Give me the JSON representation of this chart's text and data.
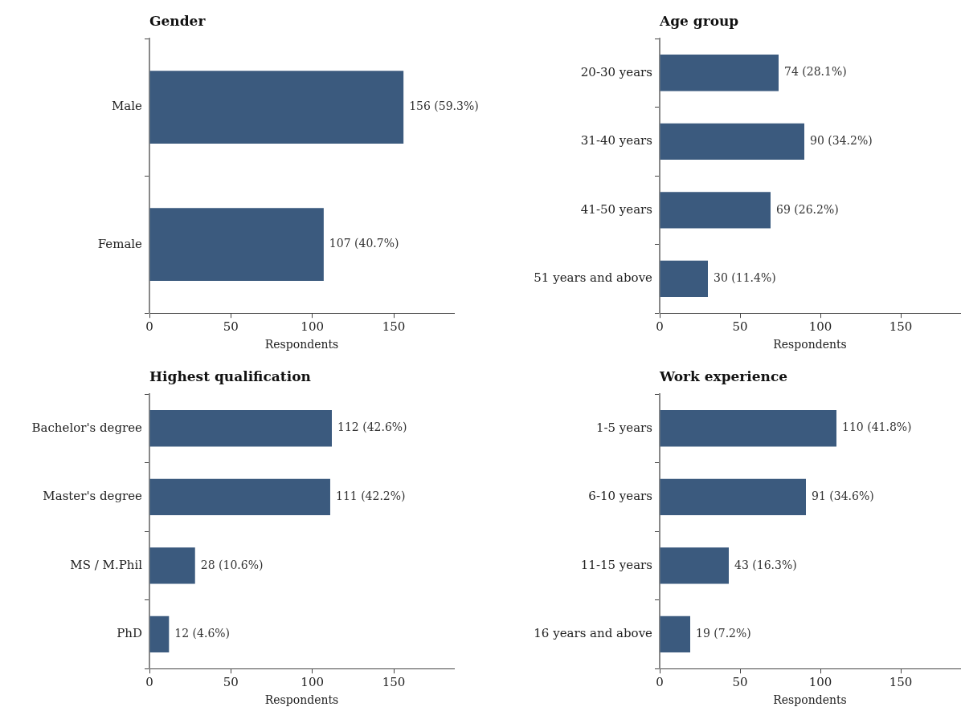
{
  "chart_data": [
    {
      "type": "bar",
      "orientation": "horizontal",
      "title": "Gender",
      "categories": [
        "Male",
        "Female"
      ],
      "values": [
        156,
        107
      ],
      "value_labels": [
        "156 (59.3%)",
        "107 (40.7%)"
      ],
      "color": "#3b5a7e",
      "xlim": [
        0,
        187
      ],
      "xticks": [
        0,
        50,
        100,
        150
      ],
      "xlabel": "Respondents",
      "grid": false
    },
    {
      "type": "bar",
      "orientation": "horizontal",
      "title": "Age group",
      "categories": [
        "20-30 years",
        "31-40 years",
        "41-50 years",
        "51 years and above"
      ],
      "values": [
        74,
        90,
        69,
        30
      ],
      "value_labels": [
        "74 (28.1%)",
        "90 (34.2%)",
        "69 (26.2%)",
        "30 (11.4%)"
      ],
      "color": "#3b5a7e",
      "xlim": [
        0,
        187
      ],
      "xticks": [
        0,
        50,
        100,
        150
      ],
      "xlabel": "Respondents",
      "grid": false
    },
    {
      "type": "bar",
      "orientation": "horizontal",
      "title": "Highest qualification",
      "categories": [
        "Bachelor's degree",
        "Master's degree",
        "MS / M.Phil",
        "PhD"
      ],
      "values": [
        112,
        111,
        28,
        12
      ],
      "value_labels": [
        "112 (42.6%)",
        "111 (42.2%)",
        "28 (10.6%)",
        "12 (4.6%)"
      ],
      "color": "#3b5a7e",
      "xlim": [
        0,
        187
      ],
      "xticks": [
        0,
        50,
        100,
        150
      ],
      "xlabel": "Respondents",
      "grid": false
    },
    {
      "type": "bar",
      "orientation": "horizontal",
      "title": "Work experience",
      "categories": [
        "1-5 years",
        "6-10 years",
        "11-15 years",
        "16 years and above"
      ],
      "values": [
        110,
        91,
        43,
        19
      ],
      "value_labels": [
        "110 (41.8%)",
        "91 (34.6%)",
        "43 (16.3%)",
        "19 (7.2%)"
      ],
      "color": "#3b5a7e",
      "xlim": [
        0,
        187
      ],
      "xticks": [
        0,
        50,
        100,
        150
      ],
      "xlabel": "Respondents",
      "grid": false
    }
  ]
}
